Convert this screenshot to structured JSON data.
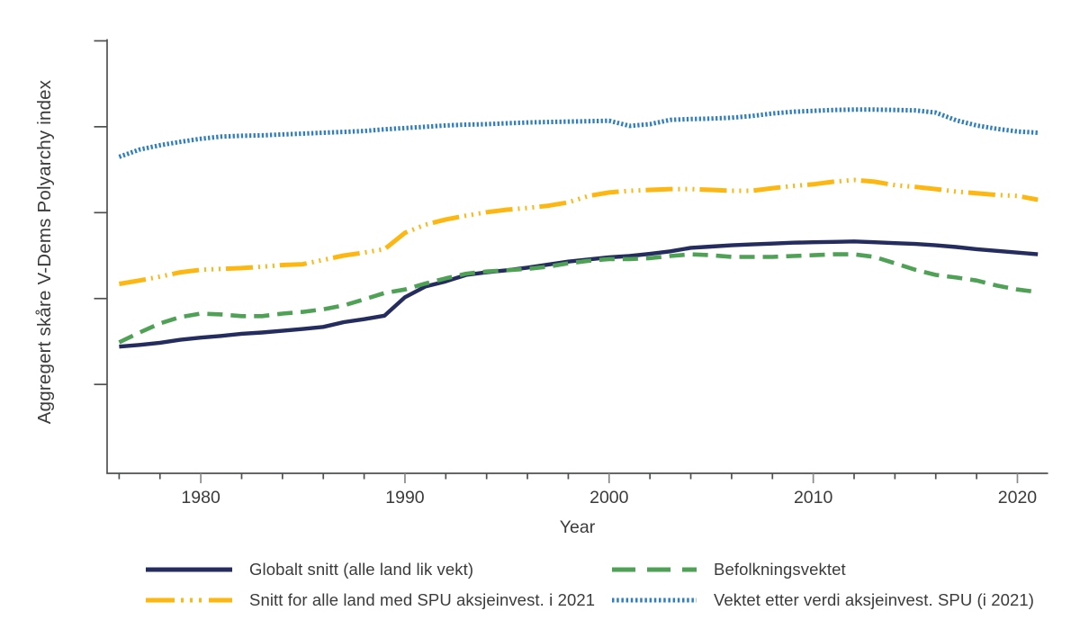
{
  "chart_data": {
    "type": "line",
    "title": "",
    "xlabel": "Year",
    "ylabel": "Aggregert skåre V-Dems Polyarchy index",
    "grid": false,
    "legend_position": "bottom",
    "xlim": [
      1975.41,
      2021.5
    ],
    "ylim": [
      -0.007,
      1.004
    ],
    "x": [
      1976,
      1977,
      1978,
      1979,
      1980,
      1981,
      1982,
      1983,
      1984,
      1985,
      1986,
      1987,
      1988,
      1989,
      1990,
      1991,
      1992,
      1993,
      1994,
      1995,
      1996,
      1997,
      1998,
      1999,
      2000,
      2001,
      2002,
      2003,
      2004,
      2005,
      2006,
      2007,
      2008,
      2009,
      2010,
      2011,
      2012,
      2013,
      2014,
      2015,
      2016,
      2017,
      2018,
      2019,
      2020,
      2021
    ],
    "x_ticks": {
      "minor_start": 1976,
      "minor_end": 2020,
      "minor_step": 2,
      "major": [
        1980,
        1990,
        2000,
        2010,
        2020
      ],
      "labels": [
        "1980",
        "1990",
        "2000",
        "2010",
        "2020"
      ]
    },
    "y_ticks": {
      "values": [
        0.2,
        0.4,
        0.6,
        0.8,
        1.0
      ],
      "labels": [
        "",
        "",
        "",
        "",
        ""
      ]
    },
    "series": [
      {
        "name": "Globalt snitt (alle land lik vekt)",
        "color": "#252d5f",
        "style": "solid",
        "values": [
          0.288,
          0.292,
          0.297,
          0.304,
          0.309,
          0.313,
          0.318,
          0.321,
          0.325,
          0.329,
          0.334,
          0.345,
          0.352,
          0.36,
          0.403,
          0.428,
          0.44,
          0.455,
          0.461,
          0.466,
          0.472,
          0.479,
          0.486,
          0.491,
          0.496,
          0.499,
          0.504,
          0.51,
          0.518,
          0.521,
          0.524,
          0.526,
          0.528,
          0.53,
          0.531,
          0.532,
          0.533,
          0.531,
          0.529,
          0.527,
          0.524,
          0.52,
          0.515,
          0.511,
          0.507,
          0.503
        ]
      },
      {
        "name": "Befolkningsvektet",
        "color": "#4fa155",
        "style": "dashed",
        "values": [
          0.298,
          0.321,
          0.342,
          0.357,
          0.365,
          0.363,
          0.359,
          0.359,
          0.365,
          0.369,
          0.375,
          0.384,
          0.398,
          0.413,
          0.421,
          0.435,
          0.447,
          0.458,
          0.463,
          0.466,
          0.469,
          0.474,
          0.482,
          0.488,
          0.492,
          0.492,
          0.494,
          0.499,
          0.503,
          0.501,
          0.497,
          0.497,
          0.497,
          0.499,
          0.501,
          0.503,
          0.503,
          0.497,
          0.482,
          0.467,
          0.455,
          0.449,
          0.442,
          0.43,
          0.421,
          0.415
        ]
      },
      {
        "name": "Snitt for alle land med SPU aksjeinvest. i 2021",
        "color": "#fdb713",
        "style": "dash-dot-dot-dot",
        "values": [
          0.434,
          0.442,
          0.451,
          0.461,
          0.467,
          0.469,
          0.471,
          0.474,
          0.478,
          0.48,
          0.49,
          0.5,
          0.507,
          0.515,
          0.553,
          0.572,
          0.584,
          0.593,
          0.601,
          0.607,
          0.611,
          0.616,
          0.624,
          0.639,
          0.647,
          0.651,
          0.653,
          0.655,
          0.655,
          0.653,
          0.651,
          0.651,
          0.657,
          0.662,
          0.666,
          0.672,
          0.676,
          0.672,
          0.664,
          0.66,
          0.655,
          0.649,
          0.645,
          0.641,
          0.639,
          0.63
        ]
      },
      {
        "name": "Vektet etter verdi aksjeinvest. SPU (i 2021)",
        "color": "#2e7ec3",
        "style": "dotted",
        "values": [
          0.73,
          0.747,
          0.757,
          0.765,
          0.772,
          0.777,
          0.779,
          0.78,
          0.782,
          0.784,
          0.786,
          0.788,
          0.79,
          0.794,
          0.797,
          0.8,
          0.803,
          0.805,
          0.806,
          0.808,
          0.81,
          0.811,
          0.812,
          0.813,
          0.814,
          0.802,
          0.806,
          0.816,
          0.818,
          0.819,
          0.821,
          0.825,
          0.831,
          0.835,
          0.837,
          0.839,
          0.84,
          0.84,
          0.839,
          0.838,
          0.833,
          0.815,
          0.803,
          0.795,
          0.789,
          0.786
        ]
      }
    ]
  }
}
